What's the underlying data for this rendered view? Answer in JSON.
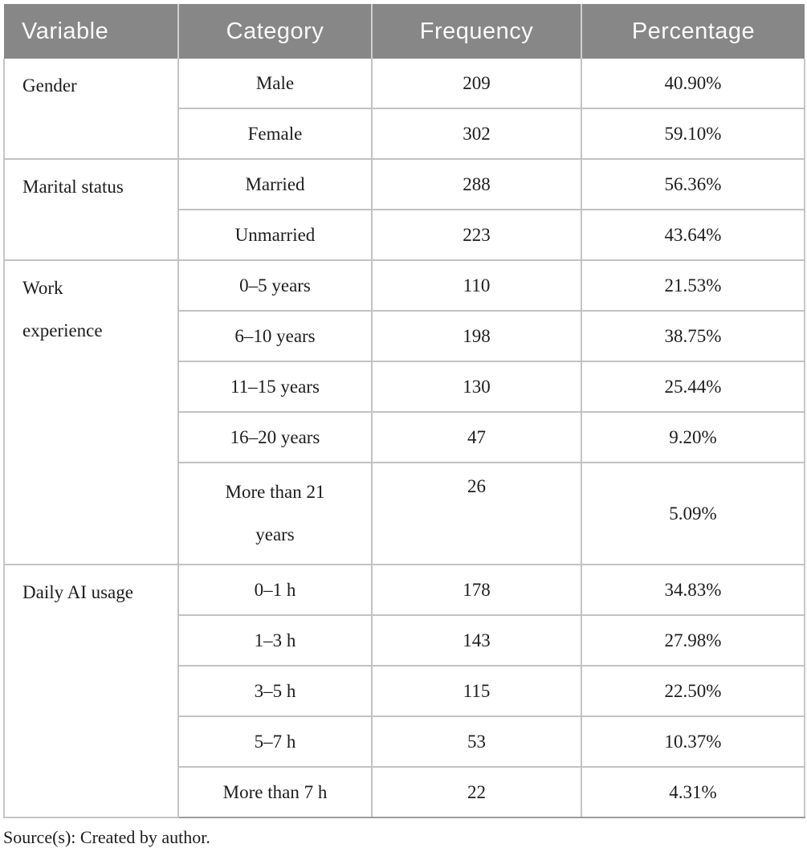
{
  "table": {
    "columns": [
      "Variable",
      "Category",
      "Frequency",
      "Percentage"
    ],
    "groups": [
      {
        "variable": "Gender",
        "rows": [
          [
            "Male",
            "209",
            "40.90%"
          ],
          [
            "Female",
            "302",
            "59.10%"
          ]
        ]
      },
      {
        "variable": "Marital status",
        "rows": [
          [
            "Married",
            "288",
            "56.36%"
          ],
          [
            "Unmarried",
            "223",
            "43.64%"
          ]
        ]
      },
      {
        "variable": "Work experience",
        "rows": [
          [
            "0–5 years",
            "110",
            "21.53%"
          ],
          [
            "6–10 years",
            "198",
            "38.75%"
          ],
          [
            "11–15 years",
            "130",
            "25.44%"
          ],
          [
            "16–20 years",
            "47",
            "9.20%"
          ],
          [
            "More than 21 years",
            "26",
            "5.09%"
          ]
        ]
      },
      {
        "variable": "Daily AI usage",
        "rows": [
          [
            "0–1 h",
            "178",
            "34.83%"
          ],
          [
            "1–3 h",
            "143",
            "27.98%"
          ],
          [
            "3–5 h",
            "115",
            "22.50%"
          ],
          [
            "5–7 h",
            "53",
            "10.37%"
          ],
          [
            "More than 7 h",
            "22",
            "4.31%"
          ]
        ]
      }
    ]
  },
  "footer": {
    "source_label": "Source(s):",
    "source_text": " Created by author."
  },
  "colors": {
    "header_bg": "#878787",
    "header_text": "#fafafa",
    "body_text": "#1c1c1c",
    "cell_border": "#c2c2c2",
    "bottom_border": "#9c9c9c"
  }
}
